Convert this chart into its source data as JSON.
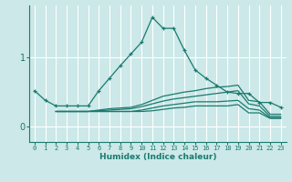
{
  "xlabel": "Humidex (Indice chaleur)",
  "bg_color": "#cce8e8",
  "line_color": "#1a7a6e",
  "grid_color": "#ffffff",
  "x_ticks": [
    0,
    1,
    2,
    3,
    4,
    5,
    6,
    7,
    8,
    9,
    10,
    11,
    12,
    13,
    14,
    15,
    16,
    17,
    18,
    19,
    20,
    21,
    22,
    23
  ],
  "y_ticks": [
    0,
    1
  ],
  "ylim": [
    -0.22,
    1.75
  ],
  "xlim": [
    -0.5,
    23.5
  ],
  "lines": [
    {
      "x": [
        0,
        1,
        2,
        3,
        4,
        5,
        6,
        7,
        8,
        9,
        10,
        11,
        12,
        13,
        14,
        15,
        16,
        17,
        18,
        19,
        20,
        21,
        22,
        23
      ],
      "y": [
        0.52,
        0.38,
        0.3,
        0.3,
        0.3,
        0.3,
        0.52,
        0.7,
        0.88,
        1.05,
        1.22,
        1.58,
        1.42,
        1.42,
        1.1,
        0.82,
        0.7,
        0.6,
        0.5,
        0.48,
        0.48,
        0.35,
        0.35,
        0.28
      ],
      "marker": "+"
    },
    {
      "x": [
        2,
        3,
        4,
        5,
        6,
        7,
        8,
        9,
        10,
        11,
        12,
        13,
        14,
        15,
        16,
        17,
        18,
        19,
        20,
        21,
        22,
        23
      ],
      "y": [
        0.22,
        0.22,
        0.22,
        0.22,
        0.24,
        0.26,
        0.27,
        0.28,
        0.32,
        0.38,
        0.44,
        0.47,
        0.5,
        0.52,
        0.55,
        0.57,
        0.58,
        0.6,
        0.38,
        0.36,
        0.18,
        0.18
      ],
      "marker": null
    },
    {
      "x": [
        2,
        3,
        4,
        5,
        6,
        7,
        8,
        9,
        10,
        11,
        12,
        13,
        14,
        15,
        16,
        17,
        18,
        19,
        20,
        21,
        22,
        23
      ],
      "y": [
        0.22,
        0.22,
        0.22,
        0.22,
        0.23,
        0.24,
        0.25,
        0.26,
        0.29,
        0.33,
        0.37,
        0.4,
        0.42,
        0.44,
        0.46,
        0.48,
        0.5,
        0.52,
        0.33,
        0.3,
        0.15,
        0.15
      ],
      "marker": null
    },
    {
      "x": [
        2,
        3,
        4,
        5,
        6,
        7,
        8,
        9,
        10,
        11,
        12,
        13,
        14,
        15,
        16,
        17,
        18,
        19,
        20,
        21,
        22,
        23
      ],
      "y": [
        0.22,
        0.22,
        0.22,
        0.22,
        0.22,
        0.22,
        0.22,
        0.22,
        0.24,
        0.27,
        0.3,
        0.32,
        0.34,
        0.36,
        0.36,
        0.36,
        0.37,
        0.38,
        0.26,
        0.24,
        0.13,
        0.13
      ],
      "marker": null
    },
    {
      "x": [
        2,
        3,
        4,
        5,
        6,
        7,
        8,
        9,
        10,
        11,
        12,
        13,
        14,
        15,
        16,
        17,
        18,
        19,
        20,
        21,
        22,
        23
      ],
      "y": [
        0.22,
        0.22,
        0.22,
        0.22,
        0.22,
        0.22,
        0.22,
        0.22,
        0.22,
        0.23,
        0.25,
        0.27,
        0.28,
        0.3,
        0.3,
        0.3,
        0.3,
        0.32,
        0.2,
        0.2,
        0.12,
        0.12
      ],
      "marker": null
    }
  ]
}
